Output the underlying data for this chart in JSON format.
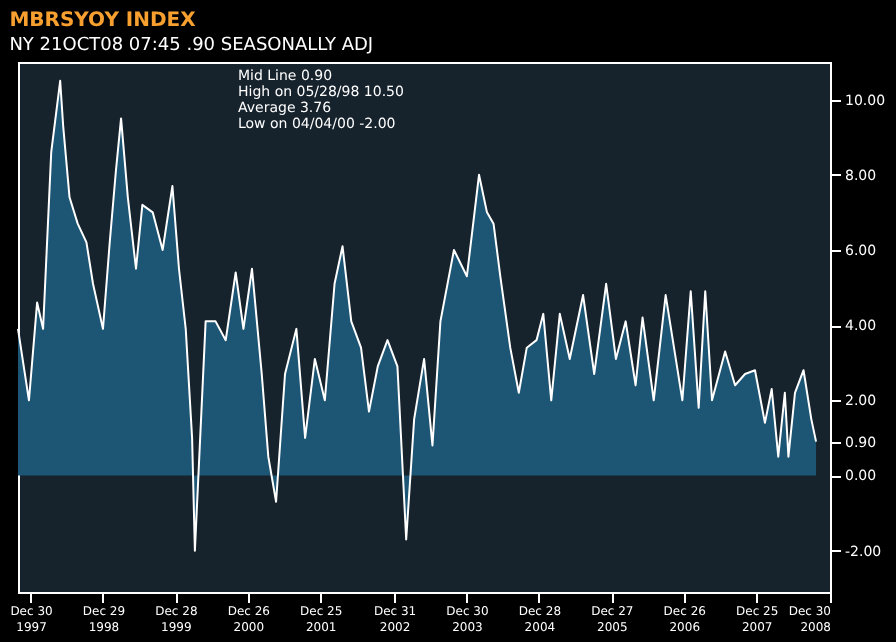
{
  "chart_data": {
    "type": "area",
    "title": "MBRSYOY INDEX",
    "subtitle": "NY 21OCT08 07:45    .90 SEASONALLY ADJ",
    "annotations": [
      "Mid Line 0.90",
      "High on 05/28/98 10.50",
      "Average 3.76",
      "Low on 04/04/00 -2.00"
    ],
    "xlim": [
      "1997-10-28",
      "2008-12-30"
    ],
    "xticks": [
      {
        "value": "1997-12-30",
        "label": "Dec 30 1997"
      },
      {
        "value": "1998-12-29",
        "label": "Dec 29 1998"
      },
      {
        "value": "1999-12-28",
        "label": "Dec 28 1999"
      },
      {
        "value": "2000-12-26",
        "label": "Dec 26 2000"
      },
      {
        "value": "2001-12-25",
        "label": "Dec 25 2001"
      },
      {
        "value": "2002-12-31",
        "label": "Dec 31 2002"
      },
      {
        "value": "2003-12-30",
        "label": "Dec 30 2003"
      },
      {
        "value": "2004-12-28",
        "label": "Dec 28 2004"
      },
      {
        "value": "2005-12-27",
        "label": "Dec 27 2005"
      },
      {
        "value": "2006-12-26",
        "label": "Dec 26 2006"
      },
      {
        "value": "2007-12-25",
        "label": "Dec 25 2007"
      },
      {
        "value": "2008-12-30",
        "label": "Dec 30 2008"
      }
    ],
    "ylim": [
      -3.1,
      11
    ],
    "yticks": [
      {
        "value": -2,
        "label": "-2.00"
      },
      {
        "value": 0,
        "label": "0.00"
      },
      {
        "value": 0.9,
        "label": "0.90"
      },
      {
        "value": 2,
        "label": "2.00"
      },
      {
        "value": 4,
        "label": "4.00"
      },
      {
        "value": 6,
        "label": "6.00"
      },
      {
        "value": 8,
        "label": "8.00"
      },
      {
        "value": 10,
        "label": "10.00"
      }
    ],
    "grid": false,
    "series": [
      {
        "color": "#1d5575",
        "x": [
          "1997-10-28",
          "1997-12-22",
          "1998-02-01",
          "1998-03-03",
          "1998-04-13",
          "1998-05-28",
          "1998-06-12",
          "1998-07-14",
          "1998-08-24",
          "1998-10-07",
          "1998-11-09",
          "1998-12-29",
          "1999-02-01",
          "1999-03-04",
          "1999-03-30",
          "1999-05-03",
          "1999-06-13",
          "1999-07-15",
          "1999-09-05",
          "1999-10-25",
          "1999-12-13",
          "2000-01-15",
          "2000-02-18",
          "2000-03-21",
          "2000-04-04",
          "2000-05-28",
          "2000-07-17",
          "2000-09-06",
          "2000-10-26",
          "2000-12-04",
          "2001-01-16",
          "2001-03-06",
          "2001-04-08",
          "2001-05-17",
          "2001-07-01",
          "2001-08-27",
          "2001-10-10",
          "2001-11-28",
          "2002-01-17",
          "2002-03-07",
          "2002-04-16",
          "2002-05-30",
          "2002-07-18",
          "2002-08-27",
          "2002-10-10",
          "2002-11-28",
          "2003-01-17",
          "2003-03-02",
          "2003-04-11",
          "2003-05-31",
          "2003-07-12",
          "2003-08-21",
          "2003-10-28",
          "2004-01-01",
          "2004-03-02",
          "2004-04-11",
          "2004-05-14",
          "2004-06-17",
          "2004-08-06",
          "2004-09-18",
          "2004-10-28",
          "2004-12-16",
          "2005-01-19",
          "2005-02-28",
          "2005-04-12",
          "2005-06-01",
          "2005-08-07",
          "2005-10-02",
          "2005-12-01",
          "2006-01-19",
          "2006-03-09",
          "2006-04-28",
          "2006-06-02",
          "2006-07-28",
          "2006-09-26",
          "2006-11-16",
          "2006-12-19",
          "2007-01-30",
          "2007-03-11",
          "2007-04-13",
          "2007-05-17",
          "2007-07-22",
          "2007-09-10",
          "2007-10-30",
          "2007-12-19",
          "2008-02-07",
          "2008-03-12",
          "2008-04-14",
          "2008-05-17",
          "2008-06-04",
          "2008-07-07",
          "2008-08-19",
          "2008-09-27",
          "2008-10-21"
        ],
        "values": [
          3.9,
          2.0,
          4.6,
          3.9,
          8.6,
          10.5,
          9.3,
          7.4,
          6.7,
          6.2,
          5.1,
          3.9,
          6.2,
          8.1,
          9.5,
          7.4,
          5.5,
          7.2,
          7.0,
          6.0,
          7.7,
          5.5,
          3.9,
          1.0,
          -2.0,
          4.1,
          4.1,
          3.6,
          5.4,
          3.9,
          5.5,
          2.7,
          0.5,
          -0.7,
          2.7,
          3.9,
          1.0,
          3.1,
          2.0,
          5.1,
          6.1,
          4.1,
          3.4,
          1.7,
          2.9,
          3.6,
          2.9,
          -1.7,
          1.5,
          3.1,
          0.8,
          4.1,
          6.0,
          5.3,
          8.0,
          7.0,
          6.7,
          5.3,
          3.4,
          2.2,
          3.4,
          3.6,
          4.3,
          2.0,
          4.3,
          3.1,
          4.8,
          2.7,
          5.1,
          3.1,
          4.1,
          2.4,
          4.2,
          2.0,
          4.8,
          3.1,
          2.0,
          4.9,
          1.8,
          4.9,
          2.0,
          3.3,
          2.4,
          2.7,
          2.8,
          1.4,
          2.3,
          0.5,
          2.2,
          0.5,
          2.2,
          2.8,
          1.5,
          0.9
        ]
      }
    ]
  }
}
